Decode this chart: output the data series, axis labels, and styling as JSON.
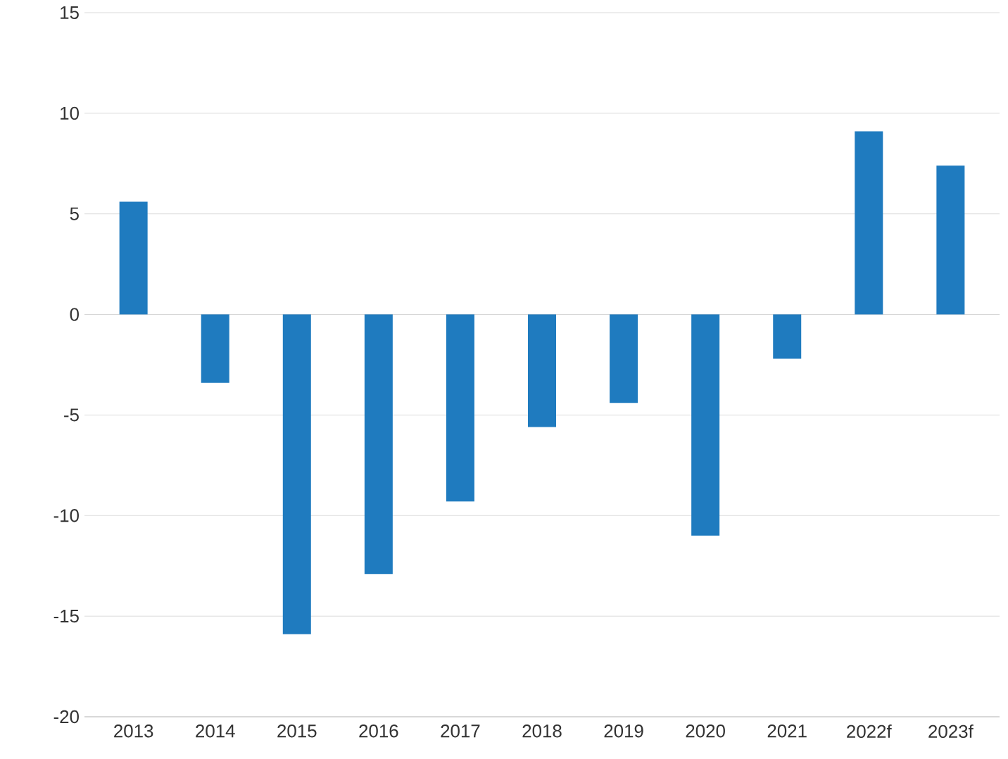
{
  "chart_data": {
    "type": "bar",
    "categories": [
      "2013",
      "2014",
      "2015",
      "2016",
      "2017",
      "2018",
      "2019",
      "2020",
      "2021",
      "2022f",
      "2023f"
    ],
    "values": [
      5.6,
      -3.4,
      -15.9,
      -12.9,
      -9.3,
      -5.6,
      -4.4,
      -11,
      -2.2,
      9.1,
      7.4
    ],
    "color": "#1f7bbf",
    "ylim": [
      -20,
      15
    ],
    "yticks": [
      -20,
      -15,
      -10,
      -5,
      0,
      5,
      10,
      15
    ],
    "grid": "y"
  }
}
